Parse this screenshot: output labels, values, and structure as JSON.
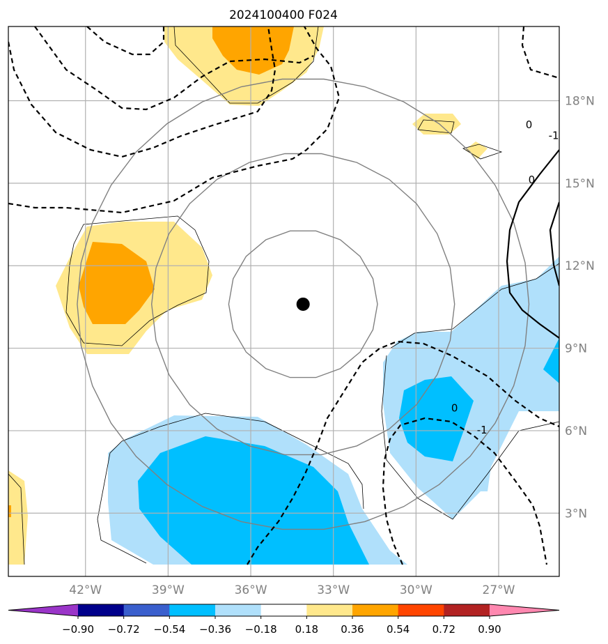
{
  "chart_data": {
    "type": "contour-map",
    "title": "2024100400 F024",
    "lon_range": [
      -44.8,
      -24.8
    ],
    "lat_range": [
      0.7,
      20.7
    ],
    "lon_ticks": [
      -42,
      -39,
      -36,
      -33,
      -30,
      -27
    ],
    "lon_tick_labels": [
      "42°W",
      "39°W",
      "36°W",
      "33°W",
      "30°W",
      "27°W"
    ],
    "lat_ticks": [
      3,
      6,
      9,
      12,
      15,
      18
    ],
    "lat_tick_labels": [
      "3°N",
      "6°N",
      "9°N",
      "12°N",
      "15°N",
      "18°N"
    ],
    "grid": true,
    "center": {
      "lon": -34.1,
      "lat": 10.6
    },
    "range_rings_deg": [
      2.7,
      5.5,
      8.2
    ],
    "contour_labels": [
      {
        "text": "0",
        "lon": -28.6,
        "lat": 6.7
      },
      {
        "text": "-1",
        "lon": -27.6,
        "lat": 5.9
      },
      {
        "text": "0",
        "lon": -25.8,
        "lat": 15.0
      },
      {
        "text": "0",
        "lon": -25.9,
        "lat": 17.0
      },
      {
        "text": "-1",
        "lon": -25.0,
        "lat": 16.6
      }
    ],
    "colorbar": {
      "orientation": "horizontal",
      "extend": "both",
      "levels": [
        -0.9,
        -0.72,
        -0.54,
        -0.36,
        -0.18,
        0.18,
        0.36,
        0.54,
        0.72,
        0.9
      ],
      "tick_labels": [
        "−0.90",
        "−0.72",
        "−0.54",
        "−0.36",
        "−0.18",
        "0.18",
        "0.36",
        "0.54",
        "0.72",
        "0.90"
      ],
      "colors": [
        "#9a35c8",
        "#00008b",
        "#3a5fcd",
        "#00bfff",
        "#b0e0fb",
        "#ffffff",
        "#ffe88c",
        "#ffa500",
        "#ff4500",
        "#b22222",
        "#ff88b0"
      ]
    }
  }
}
